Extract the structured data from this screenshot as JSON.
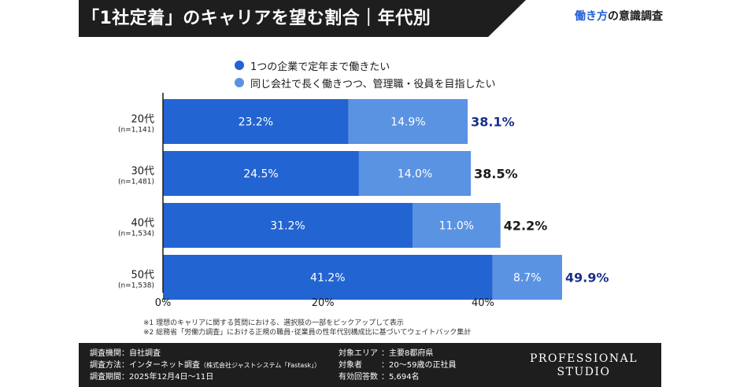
{
  "header": {
    "title": "「1社定着」のキャリアを望む割合｜年代別",
    "survey_tag_accent": "働き方",
    "survey_tag_rest": "の意識調査"
  },
  "legend": [
    {
      "label": "1つの企業で定年まで働きたい",
      "color": "#2264d1"
    },
    {
      "label": "同じ会社で長く働きつつ、管理職・役員を目指したい",
      "color": "#5b93e3"
    }
  ],
  "chart_data": {
    "type": "bar",
    "orientation": "horizontal",
    "stacked": true,
    "categories": [
      "20代",
      "30代",
      "40代",
      "50代"
    ],
    "category_notes": [
      "(n=1,141)",
      "(n=1,481)",
      "(n=1,534)",
      "(n=1,538)"
    ],
    "series": [
      {
        "name": "1つの企業で定年まで働きたい",
        "values": [
          23.2,
          24.5,
          31.2,
          41.2
        ],
        "labels": [
          "23.2%",
          "24.5%",
          "31.2%",
          "41.2%"
        ],
        "color": "#2264d1"
      },
      {
        "name": "同じ会社で長く働きつつ、管理職・役員を目指したい",
        "values": [
          14.9,
          14.0,
          11.0,
          8.7
        ],
        "labels": [
          "14.9%",
          "14.0%",
          "11.0%",
          "8.7%"
        ],
        "color": "#5b93e3"
      }
    ],
    "totals": [
      "38.1%",
      "38.5%",
      "42.2%",
      "49.9%"
    ],
    "total_colors": [
      "#1a2f8a",
      "#1a1a1a",
      "#1a1a1a",
      "#1a2f8a"
    ],
    "xlim": [
      0,
      50
    ],
    "xticks": [
      0,
      20,
      40
    ],
    "xtick_labels": [
      "0%",
      "20%",
      "40%"
    ],
    "grid": false
  },
  "notes": [
    "※1 理想のキャリアに関する質問における、選択肢の一部をピックアップして表示",
    "※2 総務省「労働力調査」における正規の職員･従業員の性年代別構成比に基づいてウェイトバック集計"
  ],
  "footer": {
    "left": [
      {
        "key": "調査機関",
        "value": "：自社調査"
      },
      {
        "key": "調査方法",
        "value": "：インターネット調査",
        "extra": "（株式会社ジャストシステム「Fastask」）"
      },
      {
        "key": "調査期間",
        "value": "：2025年12月4日〜11日"
      }
    ],
    "right": [
      {
        "key": "対象エリア",
        "value": "：主要8都府県"
      },
      {
        "key": "対象者",
        "value": "：20〜59歳の正社員"
      },
      {
        "key": "有効回答数",
        "value": "：5,694名"
      }
    ],
    "brand_line1": "PROFESSIONAL",
    "brand_line2": "STUDIO"
  }
}
